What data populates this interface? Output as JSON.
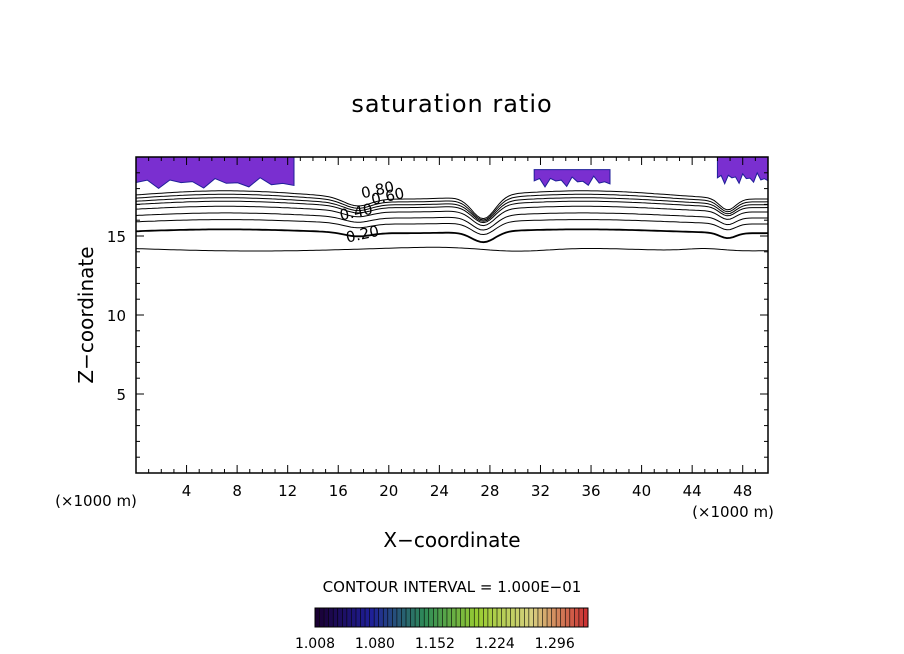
{
  "chart_data": {
    "type": "contour",
    "title": "saturation ratio",
    "xlabel": "X−coordinate",
    "ylabel": "Z−coordinate",
    "x_unit_left": "(×1000 m)",
    "x_unit_right": "(×1000 m)",
    "xlim": [
      0,
      50
    ],
    "ylim": [
      0,
      20
    ],
    "x_ticks": [
      4,
      8,
      12,
      16,
      20,
      24,
      28,
      32,
      36,
      40,
      44,
      48
    ],
    "y_ticks": [
      5,
      10,
      15
    ],
    "contour_interval_text": "CONTOUR INTERVAL = 1.000E−01",
    "contour_labels": [
      {
        "text": "0.20",
        "x": 18,
        "z": 14.8
      },
      {
        "text": "0.40",
        "x": 17.5,
        "z": 16.2
      },
      {
        "text": "0.60",
        "x": 20,
        "z": 17.2
      },
      {
        "text": "0.80",
        "x": 19.2,
        "z": 17.6
      }
    ],
    "contour_levels": [
      0.1,
      0.2,
      0.3,
      0.4,
      0.5,
      0.6,
      0.7,
      0.8,
      0.9
    ],
    "contour_base_heights": [
      14.2,
      15.3,
      15.9,
      16.3,
      16.7,
      17.0,
      17.2,
      17.4,
      17.6
    ],
    "colorbar": {
      "min": 1.008,
      "max": 1.336,
      "tick_labels": [
        "1.008",
        "1.080",
        "1.152",
        "1.224",
        "1.296"
      ],
      "colors": [
        "#1a0033",
        "#1f1f99",
        "#2e8b57",
        "#9acd32",
        "#d8d080",
        "#cc3333"
      ]
    },
    "supersaturated_regions": [
      {
        "x": [
          0,
          12.5
        ],
        "z": [
          18.2,
          20
        ]
      },
      {
        "x": [
          31.5,
          37.5
        ],
        "z": [
          18.3,
          19.2
        ]
      },
      {
        "x": [
          46,
          50
        ],
        "z": [
          18.5,
          20
        ]
      }
    ],
    "region_color": "#7a2fd0"
  }
}
